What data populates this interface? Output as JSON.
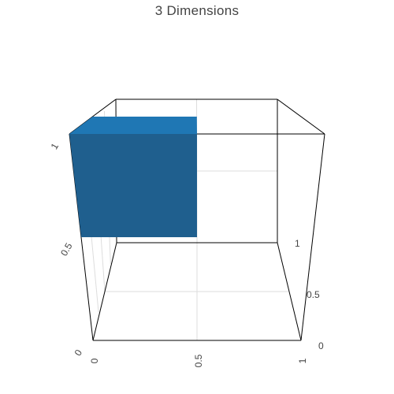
{
  "title": "3 Dimensions",
  "colors": {
    "box_front": "#1f5f8e",
    "box_top": "#1f77b4",
    "frame": "#000000",
    "grid": "#dddddd",
    "text": "#444444"
  },
  "chart_data": {
    "type": "mesh3d",
    "title": "3 Dimensions",
    "grid": true,
    "axes": {
      "x": {
        "range": [
          0,
          1
        ],
        "ticks": [
          "0",
          "0.5",
          "1"
        ]
      },
      "y": {
        "range": [
          0,
          1
        ],
        "ticks": [
          "0",
          "0.5",
          "1"
        ]
      },
      "z": {
        "range": [
          0,
          1
        ],
        "ticks": [
          "0",
          "0.5",
          "1"
        ]
      }
    },
    "series": [
      {
        "type": "cube",
        "x": [
          0,
          0.5
        ],
        "y": [
          0,
          0.5
        ],
        "z": [
          0.5,
          1
        ],
        "color": "#1f77b4"
      }
    ]
  }
}
